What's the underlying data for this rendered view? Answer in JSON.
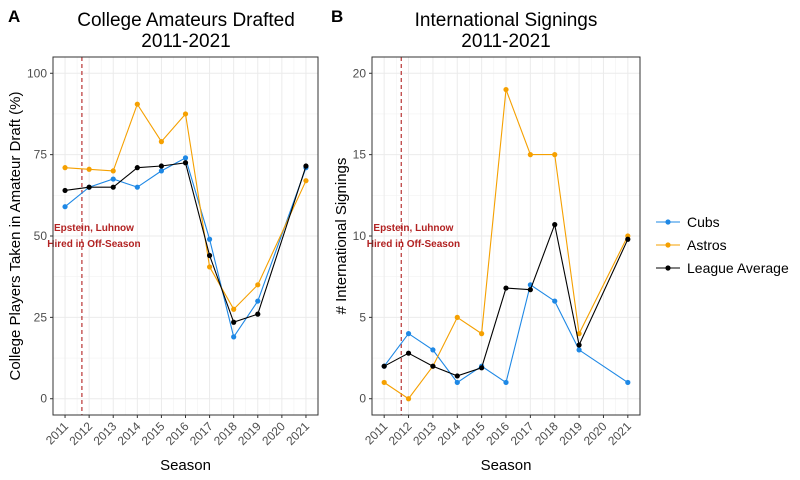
{
  "chart_data": [
    {
      "panel_label": "A",
      "type": "line",
      "title": "College Amateurs Drafted\n2011-2021",
      "title_lines": [
        "College Amateurs Drafted",
        "2011-2021"
      ],
      "xlabel": "Season",
      "ylabel": "College Players Taken in Amateur Draft (%)",
      "xlim": [
        2010.5,
        2021.5
      ],
      "ylim": [
        -5,
        105
      ],
      "yticks": [
        0,
        25,
        50,
        75,
        100
      ],
      "xticks": [
        2011,
        2012,
        2013,
        2014,
        2015,
        2016,
        2017,
        2018,
        2019,
        2020,
        2021
      ],
      "grid": true,
      "vline": {
        "x": 2011.7,
        "color": "#b22222",
        "style": "dashed"
      },
      "annotation": {
        "lines": [
          "Epstein, Luhnow",
          "Hired in Off-Season"
        ],
        "x": 2012.2,
        "y": 51.5
      },
      "series": [
        {
          "name": "Cubs",
          "color": "#1e88e5",
          "x": [
            2011,
            2012,
            2013,
            2014,
            2015,
            2016,
            2017,
            2018,
            2019,
            2021
          ],
          "y": [
            59,
            65,
            67.5,
            65,
            70,
            74,
            49,
            19,
            30,
            71
          ]
        },
        {
          "name": "Astros",
          "color": "#f5a000",
          "x": [
            2011,
            2012,
            2013,
            2014,
            2015,
            2016,
            2017,
            2018,
            2019,
            2021
          ],
          "y": [
            71,
            70.5,
            70,
            90.5,
            79,
            87.5,
            40.5,
            27.5,
            35,
            67
          ]
        },
        {
          "name": "League Average",
          "color": "#000000",
          "x": [
            2011,
            2012,
            2013,
            2014,
            2015,
            2016,
            2017,
            2018,
            2019,
            2021
          ],
          "y": [
            64,
            65,
            65,
            71,
            71.5,
            72.5,
            44,
            23.5,
            26,
            71.5
          ]
        }
      ]
    },
    {
      "panel_label": "B",
      "type": "line",
      "title": "International Signings\n2011-2021",
      "title_lines": [
        "International Signings",
        "2011-2021"
      ],
      "xlabel": "Season",
      "ylabel": "# International Signings",
      "xlim": [
        2010.5,
        2021.5
      ],
      "ylim": [
        -1,
        21
      ],
      "yticks": [
        0,
        5,
        10,
        15,
        20
      ],
      "xticks": [
        2011,
        2012,
        2013,
        2014,
        2015,
        2016,
        2017,
        2018,
        2019,
        2020,
        2021
      ],
      "grid": true,
      "vline": {
        "x": 2011.7,
        "color": "#b22222",
        "style": "dashed"
      },
      "annotation": {
        "lines": [
          "Epstein, Luhnow",
          "Hired in Off-Season"
        ],
        "x": 2012.2,
        "y": 10.3
      },
      "series": [
        {
          "name": "Cubs",
          "color": "#1e88e5",
          "x": [
            2011,
            2012,
            2013,
            2014,
            2015,
            2016,
            2017,
            2018,
            2019,
            2021
          ],
          "y": [
            2,
            4,
            3,
            1,
            2,
            1,
            7,
            6,
            3,
            1
          ]
        },
        {
          "name": "Astros",
          "color": "#f5a000",
          "x": [
            2011,
            2012,
            2013,
            2014,
            2015,
            2016,
            2017,
            2018,
            2019,
            2021
          ],
          "y": [
            1,
            0,
            2,
            5,
            4,
            19,
            15,
            15,
            4,
            10
          ]
        },
        {
          "name": "League Average",
          "color": "#000000",
          "x": [
            2011,
            2012,
            2013,
            2014,
            2015,
            2016,
            2017,
            2018,
            2019,
            2021
          ],
          "y": [
            2,
            2.8,
            2,
            1.4,
            1.9,
            6.8,
            6.7,
            10.7,
            3.3,
            9.8
          ]
        }
      ]
    }
  ],
  "legend": {
    "placement": "right",
    "items": [
      {
        "label": "Cubs",
        "color": "#1e88e5"
      },
      {
        "label": "Astros",
        "color": "#f5a000"
      },
      {
        "label": "League Average",
        "color": "#000000"
      }
    ]
  }
}
